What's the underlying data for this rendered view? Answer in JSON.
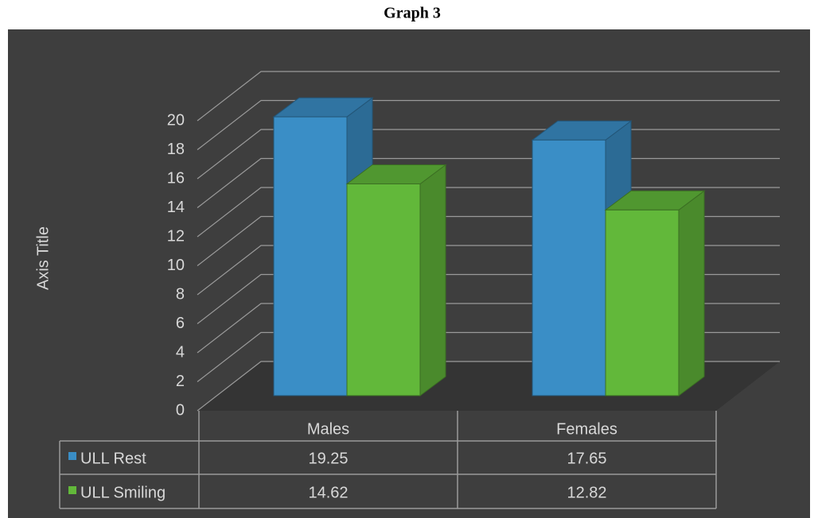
{
  "chart_data": {
    "type": "bar3d",
    "title": "Graph 3",
    "y_axis_label": "Axis Title",
    "categories": [
      "Males",
      "Females"
    ],
    "series": [
      {
        "name": "ULL Rest",
        "color": "#3a8ec6",
        "values": [
          19.25,
          17.65
        ]
      },
      {
        "name": "ULL Smiling",
        "color": "#62b83a",
        "values": [
          14.62,
          12.82
        ]
      }
    ],
    "ylim": [
      0,
      20
    ],
    "yticks": [
      0,
      2,
      4,
      6,
      8,
      10,
      12,
      14,
      16,
      18,
      20
    ],
    "grid": true,
    "data_table": true
  }
}
